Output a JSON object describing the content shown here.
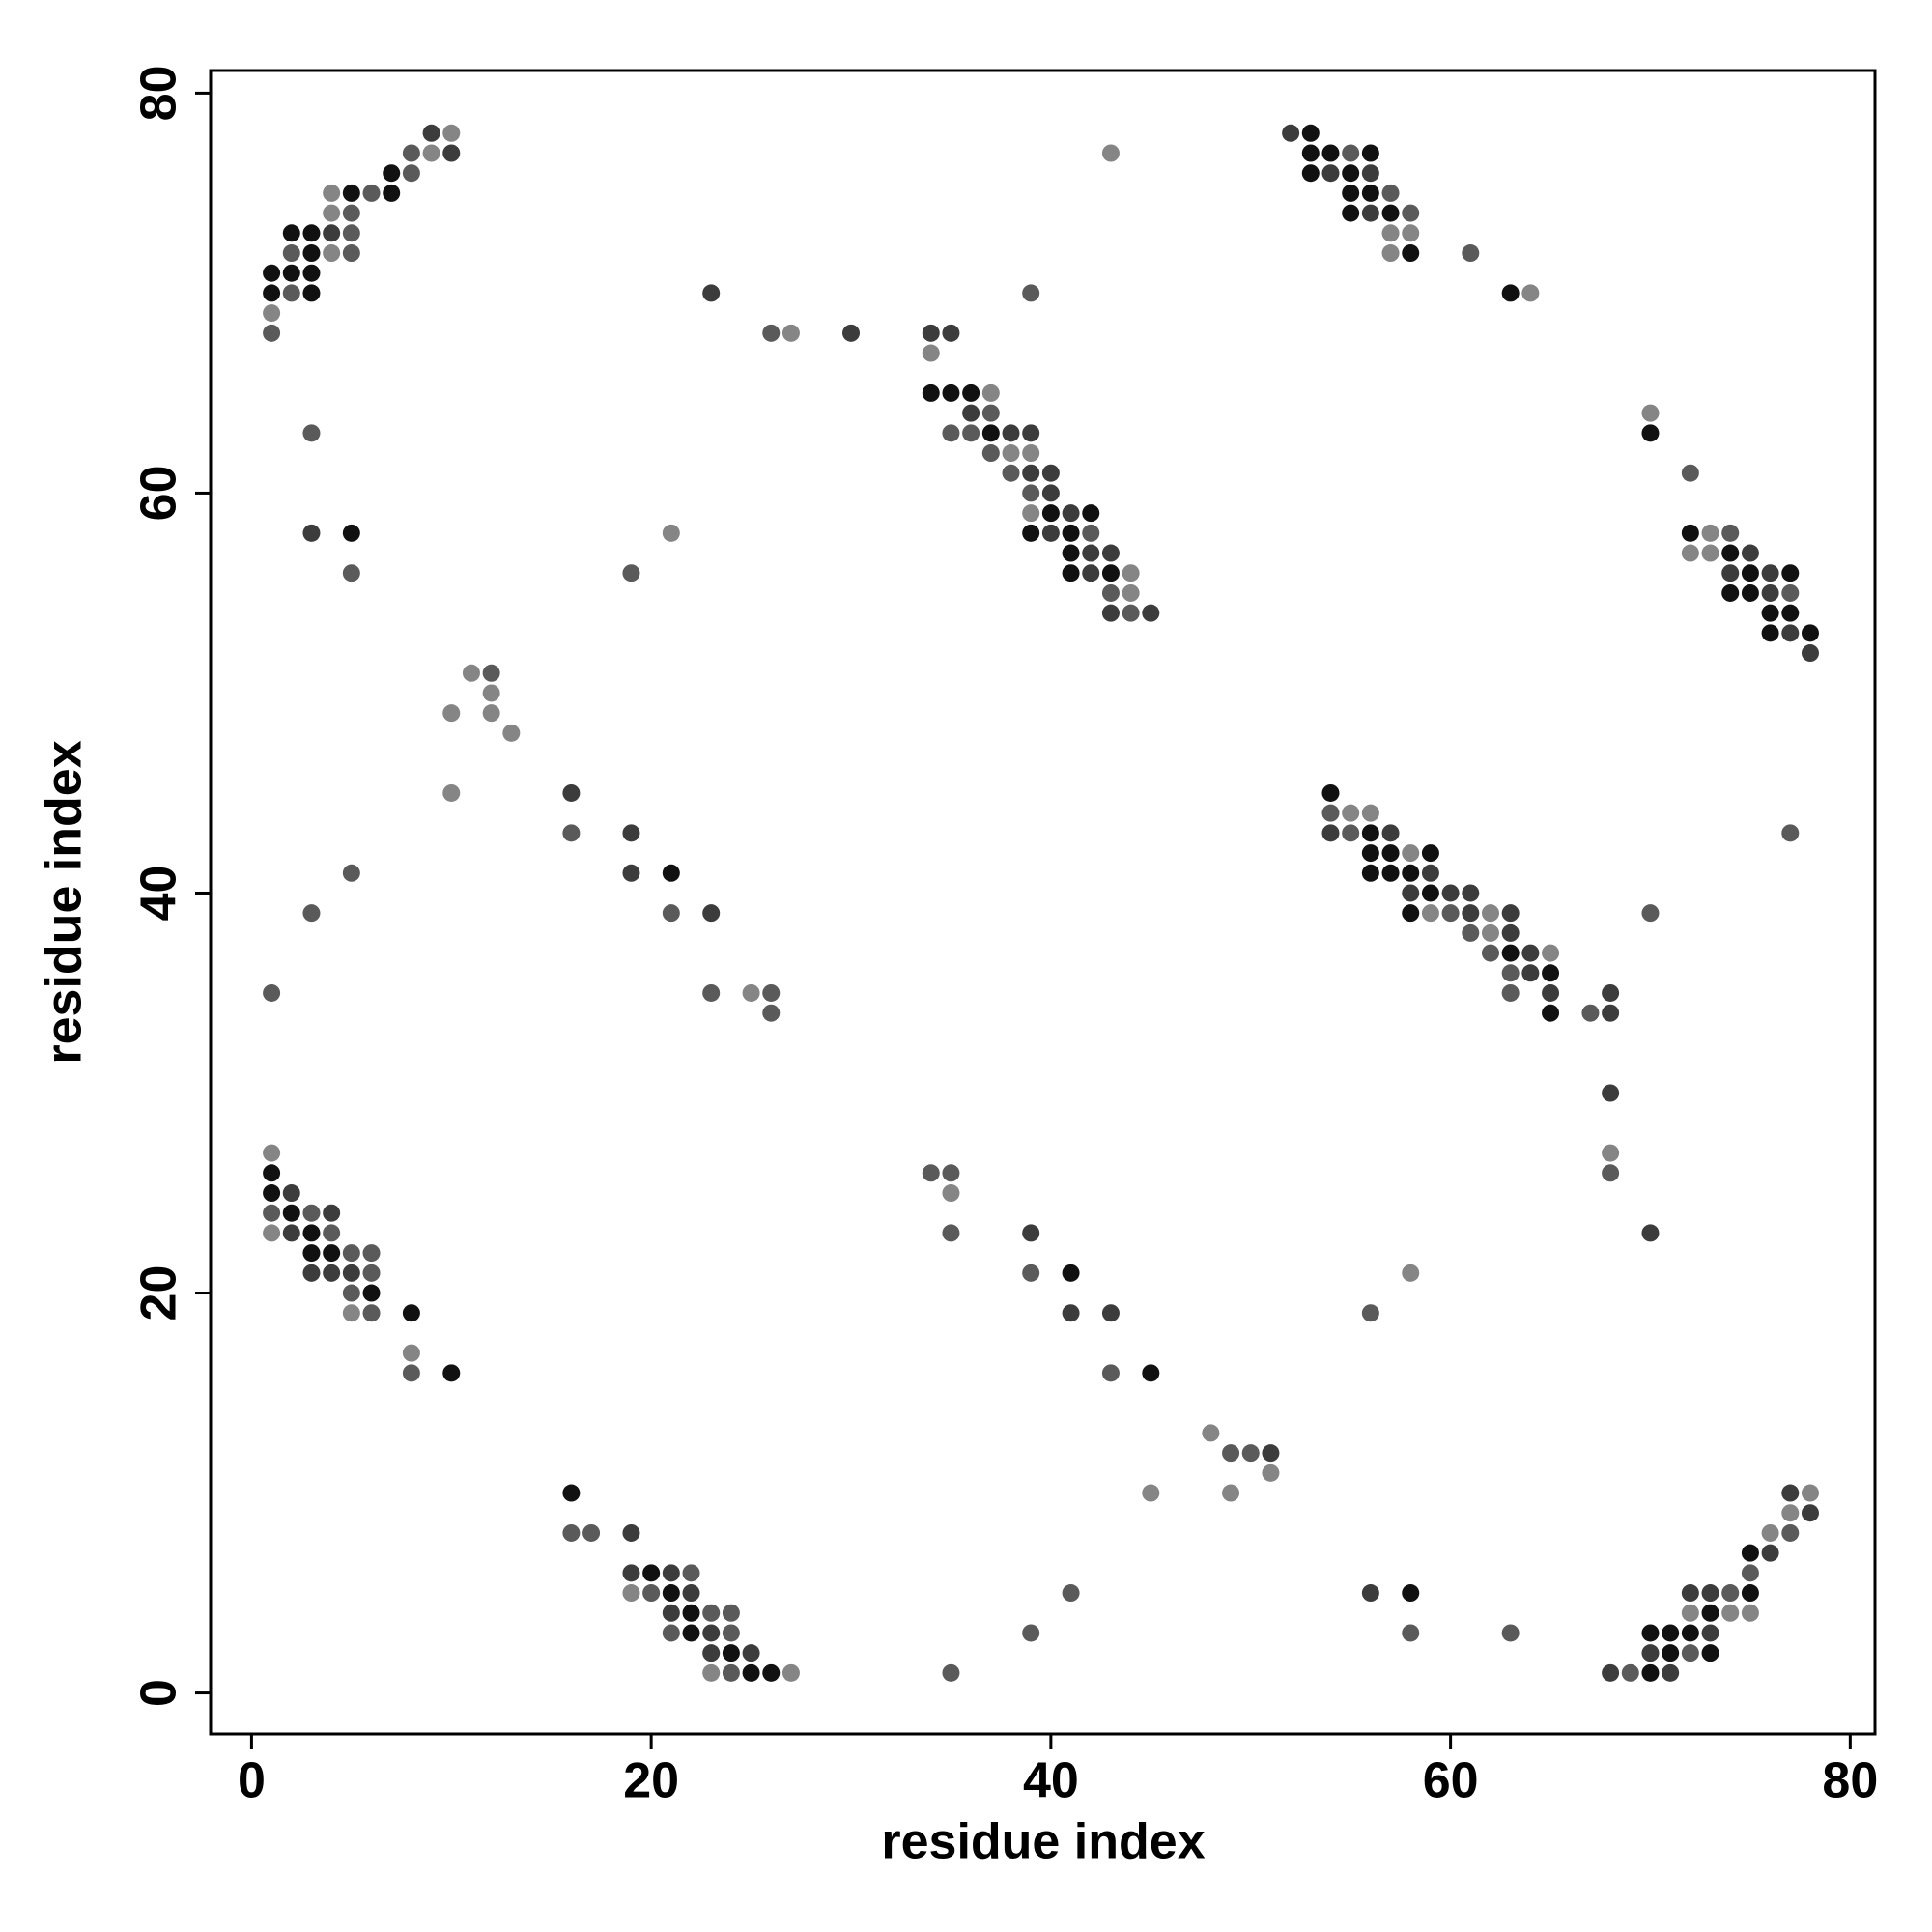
{
  "chart_data": {
    "type": "scatter",
    "xlabel": "residue index",
    "ylabel": "residue index",
    "xlim": [
      -2.05,
      81.24
    ],
    "ylim": [
      -2.05,
      81.13
    ],
    "xticks": [
      0,
      20,
      40,
      60,
      80
    ],
    "yticks": [
      0,
      20,
      40,
      60,
      80
    ],
    "series": [
      {
        "x": [
          9,
          10,
          8,
          9,
          10,
          7,
          8,
          4,
          5,
          6,
          7,
          4,
          5,
          2,
          3,
          4,
          5,
          2,
          3,
          4,
          5,
          1,
          2,
          3,
          1,
          2,
          3,
          1,
          1,
          3,
          3,
          5,
          5,
          11,
          12,
          12,
          10,
          12,
          13,
          10,
          16,
          16,
          19,
          5,
          19,
          21,
          3,
          21,
          23,
          1,
          23,
          25,
          26,
          26,
          43,
          23,
          39,
          26,
          27,
          30,
          34,
          35,
          34,
          34,
          35,
          36,
          37,
          36,
          37,
          35,
          36,
          37,
          38,
          39,
          37,
          38,
          39,
          38,
          39,
          40,
          39,
          40,
          39,
          40,
          41,
          42,
          21,
          39,
          40,
          41,
          42,
          41,
          42,
          43,
          19,
          41,
          42,
          43,
          44,
          43,
          44,
          43,
          44,
          45,
          52,
          53,
          53,
          54,
          55,
          56,
          53,
          54,
          55,
          56,
          55,
          56,
          57,
          55,
          56,
          57,
          58,
          57,
          58,
          57,
          58,
          61,
          63,
          64,
          70,
          70,
          72,
          72,
          73,
          74,
          72,
          73,
          74,
          75,
          74,
          75,
          76,
          77,
          74,
          75,
          76,
          77,
          76,
          77,
          76,
          77,
          78,
          78,
          54,
          54,
          55,
          56,
          54,
          55,
          56,
          57,
          77,
          56,
          57,
          58,
          59,
          56,
          57,
          58,
          59,
          58,
          59,
          60,
          61,
          58,
          59,
          60,
          61,
          62,
          63,
          70,
          61,
          62,
          63,
          62,
          63,
          64,
          65,
          63,
          64,
          65,
          63,
          65,
          68,
          65,
          67,
          68,
          68,
          68,
          68,
          70,
          1,
          1,
          1,
          2,
          1,
          2,
          3,
          4,
          1,
          2,
          3,
          4,
          3,
          4,
          5,
          6,
          3,
          4,
          5,
          6,
          5,
          6,
          5,
          6,
          8,
          8,
          8,
          10,
          34,
          35,
          35,
          35,
          39,
          39,
          41,
          58,
          41,
          43,
          56,
          43,
          45,
          48,
          49,
          50,
          51,
          51,
          16,
          45,
          49,
          16,
          17,
          19,
          19,
          20,
          21,
          22,
          19,
          20,
          21,
          22,
          41,
          56,
          58,
          21,
          22,
          23,
          24,
          21,
          22,
          23,
          24,
          39,
          58,
          63,
          23,
          24,
          25,
          23,
          24,
          25,
          26,
          27,
          35,
          68,
          69,
          70,
          71,
          77,
          78,
          77,
          78,
          76,
          77,
          75,
          76,
          75,
          72,
          73,
          74,
          75,
          72,
          73,
          74,
          75,
          70,
          71,
          72,
          73,
          70,
          71,
          72,
          73
        ],
        "values": [
          78,
          78,
          77,
          77,
          77,
          76,
          76,
          75,
          75,
          75,
          75,
          74,
          74,
          73,
          73,
          73,
          73,
          72,
          72,
          72,
          72,
          71,
          71,
          71,
          70,
          70,
          70,
          69,
          68,
          63,
          58,
          58,
          56,
          51,
          51,
          50,
          49,
          49,
          48,
          45,
          45,
          43,
          43,
          41,
          41,
          41,
          39,
          39,
          39,
          35,
          35,
          35,
          35,
          34,
          77,
          70,
          70,
          68,
          68,
          68,
          68,
          68,
          67,
          65,
          65,
          65,
          65,
          64,
          64,
          63,
          63,
          63,
          63,
          63,
          62,
          62,
          62,
          61,
          61,
          61,
          60,
          60,
          59,
          59,
          59,
          59,
          58,
          58,
          58,
          58,
          58,
          57,
          57,
          57,
          56,
          56,
          56,
          56,
          56,
          55,
          55,
          54,
          54,
          54,
          78,
          78,
          77,
          77,
          77,
          77,
          76,
          76,
          76,
          76,
          75,
          75,
          75,
          74,
          74,
          74,
          74,
          73,
          73,
          72,
          72,
          72,
          70,
          70,
          64,
          63,
          61,
          58,
          58,
          58,
          57,
          57,
          57,
          57,
          56,
          56,
          56,
          56,
          55,
          55,
          55,
          55,
          54,
          54,
          53,
          53,
          53,
          52,
          45,
          44,
          44,
          44,
          43,
          43,
          43,
          43,
          43,
          42,
          42,
          42,
          42,
          41,
          41,
          41,
          41,
          40,
          40,
          40,
          40,
          39,
          39,
          39,
          39,
          39,
          39,
          39,
          38,
          38,
          38,
          37,
          37,
          37,
          37,
          36,
          36,
          36,
          35,
          35,
          35,
          34,
          34,
          34,
          30,
          27,
          26,
          23,
          27,
          26,
          25,
          25,
          24,
          24,
          24,
          24,
          23,
          23,
          23,
          23,
          22,
          22,
          22,
          22,
          21,
          21,
          21,
          21,
          20,
          20,
          19,
          19,
          19,
          17,
          16,
          16,
          26,
          26,
          25,
          23,
          23,
          21,
          21,
          21,
          19,
          19,
          19,
          16,
          16,
          13,
          12,
          12,
          12,
          11,
          10,
          10,
          10,
          8,
          8,
          8,
          6,
          6,
          6,
          6,
          5,
          5,
          5,
          5,
          5,
          5,
          5,
          4,
          4,
          4,
          4,
          3,
          3,
          3,
          3,
          3,
          3,
          3,
          2,
          2,
          2,
          1,
          1,
          1,
          1,
          1,
          1,
          1,
          1,
          1,
          1,
          10,
          10,
          9,
          9,
          8,
          8,
          7,
          7,
          6,
          5,
          5,
          5,
          5,
          4,
          4,
          4,
          4,
          3,
          3,
          3,
          3,
          2,
          2,
          2,
          2
        ],
        "colors": [
          "#3c3c3c",
          "#858585",
          "#5a5a5a",
          "#858585",
          "#3c3c3c",
          "#111",
          "#5a5a5a",
          "#858585",
          "#111",
          "#5a5a5a",
          "#111",
          "#858585",
          "#5a5a5a",
          "#111",
          "#111",
          "#3c3c3c",
          "#5a5a5a",
          "#5a5a5a",
          "#111",
          "#858585",
          "#5a5a5a",
          "#111",
          "#111",
          "#111",
          "#111",
          "#5a5a5a",
          "#111",
          "#858585",
          "#5a5a5a",
          "#5a5a5a",
          "#3c3c3c",
          "#111",
          "#5a5a5a",
          "#858585",
          "#5a5a5a",
          "#858585",
          "#858585",
          "#858585",
          "#858585",
          "#858585",
          "#3c3c3c",
          "#5a5a5a",
          "#3c3c3c",
          "#5a5a5a",
          "#3c3c3c",
          "#111",
          "#5a5a5a",
          "#5a5a5a",
          "#3c3c3c",
          "#5a5a5a",
          "#5a5a5a",
          "#858585",
          "#5a5a5a",
          "#5a5a5a",
          "#858585",
          "#3c3c3c",
          "#5a5a5a",
          "#5a5a5a",
          "#858585",
          "#3c3c3c",
          "#3c3c3c",
          "#3c3c3c",
          "#858585",
          "#111",
          "#111",
          "#111",
          "#858585",
          "#3c3c3c",
          "#5a5a5a",
          "#5a5a5a",
          "#5a5a5a",
          "#111",
          "#3c3c3c",
          "#3c3c3c",
          "#5a5a5a",
          "#858585",
          "#858585",
          "#5a5a5a",
          "#3c3c3c",
          "#3c3c3c",
          "#5a5a5a",
          "#3c3c3c",
          "#858585",
          "#111",
          "#3c3c3c",
          "#111",
          "#858585",
          "#111",
          "#3c3c3c",
          "#111",
          "#5a5a5a",
          "#111",
          "#3c3c3c",
          "#3c3c3c",
          "#5a5a5a",
          "#111",
          "#3c3c3c",
          "#111",
          "#858585",
          "#5a5a5a",
          "#858585",
          "#3c3c3c",
          "#5a5a5a",
          "#3c3c3c",
          "#3c3c3c",
          "#111",
          "#111",
          "#111",
          "#5a5a5a",
          "#111",
          "#111",
          "#3c3c3c",
          "#111",
          "#3c3c3c",
          "#111",
          "#111",
          "#5a5a5a",
          "#111",
          "#3c3c3c",
          "#111",
          "#5a5a5a",
          "#858585",
          "#858585",
          "#858585",
          "#111",
          "#5a5a5a",
          "#111",
          "#858585",
          "#858585",
          "#111",
          "#5a5a5a",
          "#111",
          "#858585",
          "#5a5a5a",
          "#858585",
          "#858585",
          "#111",
          "#3c3c3c",
          "#3c3c3c",
          "#111",
          "#3c3c3c",
          "#111",
          "#111",
          "#111",
          "#3c3c3c",
          "#5a5a5a",
          "#111",
          "#111",
          "#111",
          "#3c3c3c",
          "#111",
          "#3c3c3c",
          "#111",
          "#5a5a5a",
          "#858585",
          "#858585",
          "#3c3c3c",
          "#5a5a5a",
          "#111",
          "#3c3c3c",
          "#5a5a5a",
          "#111",
          "#111",
          "#858585",
          "#111",
          "#111",
          "#111",
          "#111",
          "#3c3c3c",
          "#3c3c3c",
          "#111",
          "#3c3c3c",
          "#3c3c3c",
          "#111",
          "#858585",
          "#5a5a5a",
          "#3c3c3c",
          "#858585",
          "#3c3c3c",
          "#5a5a5a",
          "#5a5a5a",
          "#858585",
          "#3c3c3c",
          "#5a5a5a",
          "#111",
          "#3c3c3c",
          "#858585",
          "#5a5a5a",
          "#3c3c3c",
          "#111",
          "#5a5a5a",
          "#3c3c3c",
          "#3c3c3c",
          "#111",
          "#5a5a5a",
          "#3c3c3c",
          "#3c3c3c",
          "#858585",
          "#5a5a5a",
          "#3c3c3c",
          "#858585",
          "#111",
          "#111",
          "#3c3c3c",
          "#5a5a5a",
          "#111",
          "#5a5a5a",
          "#3c3c3c",
          "#858585",
          "#3c3c3c",
          "#111",
          "#5a5a5a",
          "#111",
          "#111",
          "#5a5a5a",
          "#5a5a5a",
          "#3c3c3c",
          "#3c3c3c",
          "#3c3c3c",
          "#5a5a5a",
          "#5a5a5a",
          "#111",
          "#858585",
          "#5a5a5a",
          "#111",
          "#858585",
          "#5a5a5a",
          "#111",
          "#5a5a5a",
          "#5a5a5a",
          "#858585",
          "#5a5a5a",
          "#3c3c3c",
          "#5a5a5a",
          "#111",
          "#858585",
          "#3c3c3c",
          "#3c3c3c",
          "#5a5a5a",
          "#5a5a5a",
          "#111",
          "#858585",
          "#5a5a5a",
          "#5a5a5a",
          "#3c3c3c",
          "#858585",
          "#111",
          "#858585",
          "#858585",
          "#5a5a5a",
          "#5a5a5a",
          "#3c3c3c",
          "#3c3c3c",
          "#111",
          "#3c3c3c",
          "#5a5a5a",
          "#858585",
          "#5a5a5a",
          "#111",
          "#3c3c3c",
          "#5a5a5a",
          "#3c3c3c",
          "#111",
          "#3c3c3c",
          "#111",
          "#5a5a5a",
          "#5a5a5a",
          "#5a5a5a",
          "#111",
          "#3c3c3c",
          "#5a5a5a",
          "#5a5a5a",
          "#5a5a5a",
          "#5a5a5a",
          "#3c3c3c",
          "#111",
          "#3c3c3c",
          "#858585",
          "#5a5a5a",
          "#111",
          "#111",
          "#858585",
          "#5a5a5a",
          "#3c3c3c",
          "#5a5a5a",
          "#111",
          "#3c3c3c",
          "#3c3c3c",
          "#858585",
          "#858585",
          "#3c3c3c",
          "#858585",
          "#5a5a5a",
          "#111",
          "#3c3c3c",
          "#5a5a5a",
          "#3c3c3c",
          "#3c3c3c",
          "#5a5a5a",
          "#111",
          "#858585",
          "#111",
          "#858585",
          "#858585",
          "#111",
          "#111",
          "#111",
          "#3c3c3c",
          "#3c3c3c",
          "#111",
          "#5a5a5a",
          "#111"
        ]
      }
    ]
  }
}
